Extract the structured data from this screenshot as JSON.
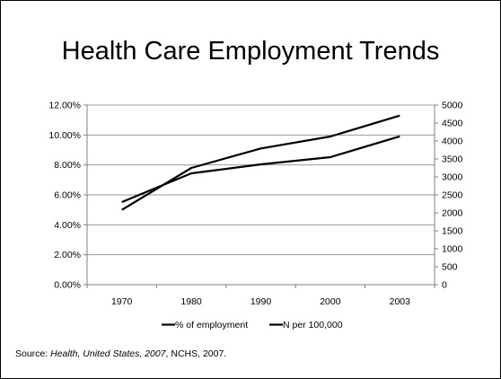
{
  "slide": {
    "title": "Health Care Employment Trends"
  },
  "source": {
    "prefix": "Source: ",
    "italic": "Health, United States, 2007",
    "suffix": ", NCHS, 2007."
  },
  "chart_data": {
    "type": "line",
    "title": "",
    "categories": [
      "1970",
      "1980",
      "1990",
      "2000",
      "2003"
    ],
    "y_left": {
      "ticks": [
        "0.00%",
        "2.00%",
        "4.00%",
        "6.00%",
        "8.00%",
        "10.00%",
        "12.00%"
      ],
      "ylim": [
        0,
        12
      ]
    },
    "y_right": {
      "ticks": [
        "0",
        "500",
        "1000",
        "1500",
        "2000",
        "2500",
        "3000",
        "3500",
        "4000",
        "4500",
        "5000"
      ],
      "ylim": [
        0,
        5000
      ]
    },
    "series": [
      {
        "name": "% of employment",
        "axis": "left",
        "values": [
          5.0,
          7.8,
          9.1,
          9.9,
          11.3
        ],
        "color": "#000000"
      },
      {
        "name": "N per 100,000",
        "axis": "right",
        "values": [
          2300,
          3100,
          3350,
          3550,
          4130
        ],
        "color": "#000000"
      }
    ],
    "grid": true,
    "legend": "bottom"
  }
}
